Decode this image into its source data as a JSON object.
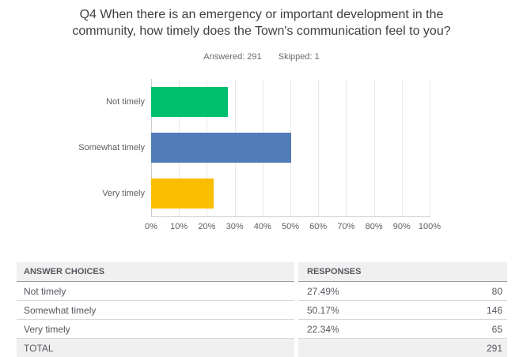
{
  "header": {
    "title_line1": "Q4 When there is an emergency or important development in the",
    "title_line2": "community, how timely does the Town's communication feel to you?",
    "answered_label": "Answered: 291",
    "skipped_label": "Skipped: 1"
  },
  "chart_data": {
    "type": "bar",
    "orientation": "horizontal",
    "title": "",
    "categories": [
      "Not timely",
      "Somewhat timely",
      "Very timely"
    ],
    "values": [
      27.49,
      50.17,
      22.34
    ],
    "bar_colors": [
      "#00BF6F",
      "#507CB8",
      "#F9BE00"
    ],
    "xlim": [
      0,
      100
    ],
    "x_ticks": [
      "0%",
      "10%",
      "20%",
      "30%",
      "40%",
      "50%",
      "60%",
      "70%",
      "80%",
      "90%",
      "100%"
    ],
    "grid": true,
    "legend": "none"
  },
  "table": {
    "columns": [
      "ANSWER CHOICES",
      "RESPONSES"
    ],
    "rows": [
      {
        "choice": "Not timely",
        "percent": "27.49%",
        "count": "80"
      },
      {
        "choice": "Somewhat timely",
        "percent": "50.17%",
        "count": "146"
      },
      {
        "choice": "Very timely",
        "percent": "22.34%",
        "count": "65"
      }
    ],
    "total": {
      "label": "TOTAL",
      "percent": "",
      "count": "291"
    }
  },
  "colors": {
    "title_text": "#3f3f3f",
    "meta_text": "#6b6b6b",
    "axis_text": "#606060",
    "table_text": "#54585e",
    "gridline": "#e8e8e8",
    "axis_line": "#cdcdcd",
    "header_bg": "#f0f0f0",
    "row_border": "#d9d9d9"
  }
}
